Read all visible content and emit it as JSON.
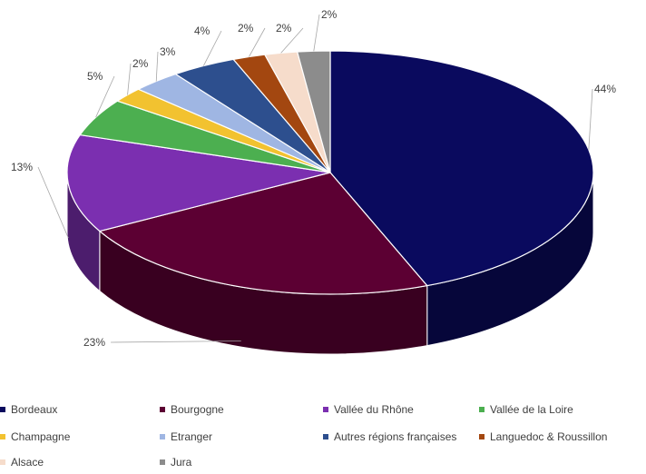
{
  "chart_data": {
    "type": "pie",
    "style": "3d",
    "series": [
      {
        "values": [
          44,
          23,
          13,
          5,
          2,
          3,
          4,
          2,
          2,
          2
        ]
      }
    ],
    "categories": [
      "Bordeaux",
      "Bourgogne",
      "Vallée du Rhône",
      "Vallée de la Loire",
      "Champagne",
      "Etranger",
      "Autres régions françaises",
      "Languedoc & Roussillon",
      "Alsace",
      "Jura"
    ],
    "data_labels": [
      "44%",
      "23%",
      "13%",
      "5%",
      "2%",
      "3%",
      "4%",
      "2%",
      "2%",
      "2%"
    ],
    "colors": [
      "#0a0a5e",
      "#5c0033",
      "#7b2fb0",
      "#4caf50",
      "#f2c230",
      "#9fb6e3",
      "#2d4f8e",
      "#a34710",
      "#f6dccb",
      "#8c8c8c"
    ],
    "legend_position": "bottom"
  }
}
